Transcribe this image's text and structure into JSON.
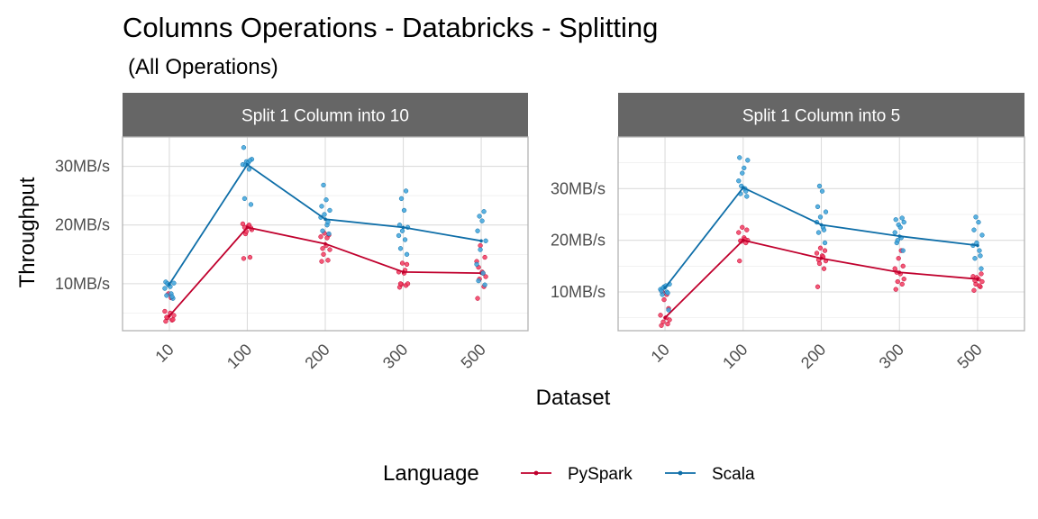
{
  "chart_data": {
    "type": "line",
    "title": "Columns Operations - Databricks - Splitting",
    "subtitle": "(All Operations)",
    "xlabel": "Dataset",
    "ylabel": "Throughput",
    "categories": [
      "10",
      "100",
      "200",
      "300",
      "500"
    ],
    "legend": {
      "title": "Language",
      "placement": "bottom",
      "entries": [
        {
          "name": "PySpark",
          "color": "#c0002d",
          "point_color": "#f23c60"
        },
        {
          "name": "Scala",
          "color": "#0e6ea8",
          "point_color": "#3ea4dc"
        }
      ]
    },
    "grid": true,
    "panels": [
      {
        "label": "Split 1 Column into 10",
        "ylim": [
          2,
          35
        ],
        "yticks": [
          10,
          20,
          30
        ],
        "ytick_labels": [
          "10MB/s",
          "20MB/s",
          "30MB/s"
        ],
        "series": [
          {
            "name": "PySpark",
            "means": [
              4.5,
              19.6,
              16.8,
              12.0,
              11.8
            ],
            "points": [
              [
                3.6,
                3.8,
                4.2,
                4.6,
                5.0,
                5.3,
                3.9,
                8.3,
                7.6,
                4.3
              ],
              [
                14.3,
                14.5,
                18.5,
                19.2,
                19.8,
                20.2,
                19.5,
                18.9,
                20.0,
                19.6
              ],
              [
                13.8,
                14.0,
                15.0,
                15.8,
                16.5,
                18.0,
                18.3,
                18.6,
                17.8,
                16.0
              ],
              [
                9.4,
                9.7,
                9.9,
                10.0,
                11.8,
                12.0,
                13.3,
                13.5,
                12.3,
                10.0
              ],
              [
                7.5,
                9.5,
                10.8,
                11.2,
                12.0,
                13.8,
                14.5,
                16.5,
                11.8,
                12.8
              ]
            ]
          },
          {
            "name": "Scala",
            "means": [
              9.9,
              30.3,
              21.0,
              19.6,
              17.3
            ],
            "points": [
              [
                7.5,
                8.0,
                8.3,
                9.2,
                9.8,
                10.1,
                10.3,
                9.5,
                10.0,
                7.8
              ],
              [
                23.5,
                24.5,
                29.5,
                30.3,
                30.8,
                31.2,
                33.2,
                30.6,
                30.2,
                31.0
              ],
              [
                18.5,
                19.0,
                20.0,
                21.3,
                21.8,
                22.5,
                23.2,
                24.3,
                26.8,
                20.5
              ],
              [
                15.0,
                16.0,
                17.5,
                18.2,
                19.0,
                19.6,
                20.0,
                22.5,
                24.5,
                25.8
              ],
              [
                9.8,
                10.5,
                11.8,
                13.3,
                15.8,
                17.3,
                19.0,
                20.7,
                21.5,
                22.3
              ]
            ]
          }
        ]
      },
      {
        "label": "Split 1 Column into 5",
        "ylim": [
          2.5,
          40
        ],
        "yticks": [
          10,
          20,
          30
        ],
        "ytick_labels": [
          "10MB/s",
          "20MB/s",
          "30MB/s"
        ],
        "series": [
          {
            "name": "PySpark",
            "means": [
              5.0,
              20.0,
              16.5,
              13.8,
              12.5
            ],
            "points": [
              [
                3.5,
                3.8,
                4.2,
                4.6,
                5.0,
                5.5,
                6.8,
                8.5,
                9.5,
                10.0
              ],
              [
                16.0,
                19.5,
                19.8,
                20.0,
                20.5,
                21.5,
                22.0,
                22.5,
                20.2,
                19.9
              ],
              [
                11.0,
                14.5,
                15.5,
                16.0,
                17.0,
                17.5,
                18.0,
                18.5,
                16.8,
                16.2
              ],
              [
                10.5,
                11.5,
                12.0,
                12.5,
                13.5,
                14.5,
                15.0,
                16.5,
                18.0,
                13.8
              ],
              [
                10.3,
                11.0,
                11.5,
                12.0,
                12.5,
                13.0,
                13.5,
                12.8,
                11.2,
                12.2
              ]
            ]
          },
          {
            "name": "Scala",
            "means": [
              10.8,
              30.2,
              23.0,
              20.8,
              19.0
            ],
            "points": [
              [
                6.5,
                9.5,
                10.0,
                10.5,
                11.0,
                11.5,
                10.2,
                11.2,
                10.8,
                9.8
              ],
              [
                28.5,
                29.0,
                30.0,
                31.5,
                33.0,
                35.5,
                36.0,
                34.0,
                30.5,
                29.5
              ],
              [
                19.5,
                21.5,
                22.5,
                23.5,
                24.5,
                25.5,
                26.5,
                29.5,
                30.5,
                22.0
              ],
              [
                18.0,
                19.5,
                20.5,
                21.5,
                23.0,
                23.5,
                24.0,
                22.5,
                20.0,
                24.3
              ],
              [
                14.5,
                16.5,
                18.0,
                19.0,
                19.5,
                21.0,
                22.0,
                23.5,
                24.5,
                17.0
              ]
            ]
          }
        ]
      }
    ]
  }
}
